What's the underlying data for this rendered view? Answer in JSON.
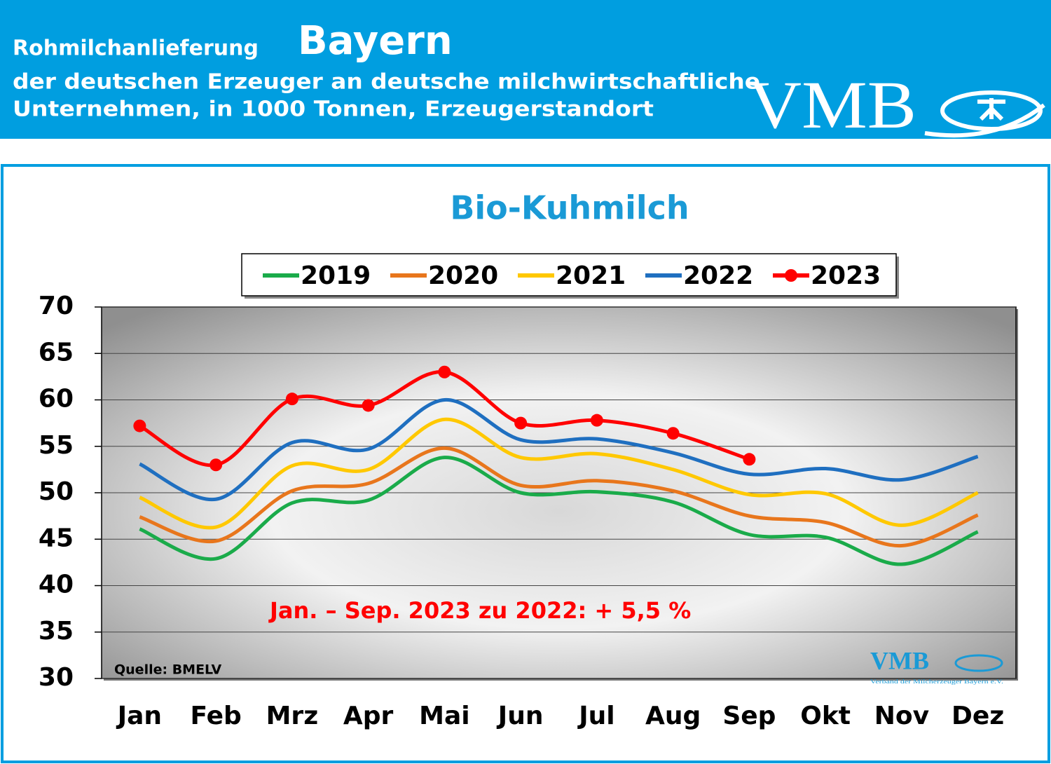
{
  "header": {
    "title": "Rohmilchanlieferung",
    "region": "Bayern",
    "line2": "der deutschen Erzeuger an deutsche milchwirtschaftliche",
    "line3": "Unternehmen, in 1000 Tonnen, Erzeugerstandort",
    "logo": "VMB"
  },
  "chart_data": {
    "type": "line",
    "title": "Bio-Kuhmilch",
    "categories": [
      "Jan",
      "Feb",
      "Mrz",
      "Apr",
      "Mai",
      "Jun",
      "Jul",
      "Aug",
      "Sep",
      "Okt",
      "Nov",
      "Dez"
    ],
    "series": [
      {
        "name": "2019",
        "color": "#1aab4a",
        "values": [
          46.1,
          42.9,
          48.9,
          49.2,
          53.8,
          50.0,
          50.1,
          49.0,
          45.5,
          45.2,
          42.3,
          45.8
        ]
      },
      {
        "name": "2020",
        "color": "#e8761c",
        "values": [
          47.4,
          44.8,
          50.2,
          51.0,
          54.8,
          50.8,
          51.3,
          50.2,
          47.5,
          46.8,
          44.3,
          47.6
        ]
      },
      {
        "name": "2021",
        "color": "#ffc800",
        "values": [
          49.5,
          46.3,
          52.9,
          52.5,
          57.9,
          53.8,
          54.2,
          52.5,
          49.8,
          49.9,
          46.5,
          50.0
        ]
      },
      {
        "name": "2022",
        "color": "#1f6fc0",
        "values": [
          53.1,
          49.3,
          55.4,
          54.7,
          60.0,
          55.7,
          55.8,
          54.3,
          52.0,
          52.6,
          51.4,
          53.9
        ]
      },
      {
        "name": "2023",
        "color": "#ff0000",
        "marker": "circle",
        "values": [
          57.2,
          53.0,
          60.1,
          59.4,
          63.0,
          57.5,
          57.8,
          56.4,
          53.6,
          null,
          null,
          null
        ]
      }
    ],
    "ylim": [
      30,
      70
    ],
    "yticks": [
      30,
      35,
      40,
      45,
      50,
      55,
      60,
      65,
      70
    ],
    "grid": true,
    "legend": "top",
    "annotation": "Jan. – Sep. 2023 zu 2022: + 5,5 %",
    "source": "Quelle: BMELV",
    "logo": "VMB",
    "logo_caption": "Verband der Milcherzeuger Bayern e.V."
  }
}
